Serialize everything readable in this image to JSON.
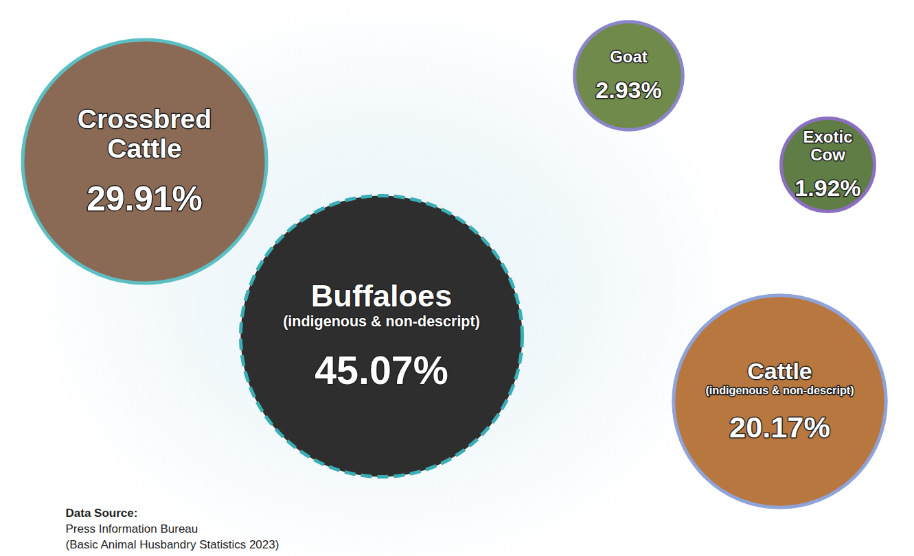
{
  "chart_data": {
    "type": "bubble",
    "categories": [
      "Crossbred Cattle",
      "Buffaloes (indigenous & non-descript)",
      "Goat",
      "Exotic Cow",
      "Cattle (indigenous & non-descript)"
    ],
    "values": [
      29.91,
      45.07,
      2.93,
      1.92,
      20.17
    ],
    "value_labels": [
      "29.91%",
      "45.07%",
      "2.93%",
      "1.92%",
      "20.17%"
    ],
    "colors": [
      "#8a6a55",
      "#2e2e2e",
      "#6f8a4a",
      "#5f7d45",
      "#b8773f"
    ],
    "data_labels": true,
    "annotations": [
      "Data Source:",
      "Press Information Bureau",
      "(Basic Animal Husbandry Statistics 2023)"
    ]
  }
}
